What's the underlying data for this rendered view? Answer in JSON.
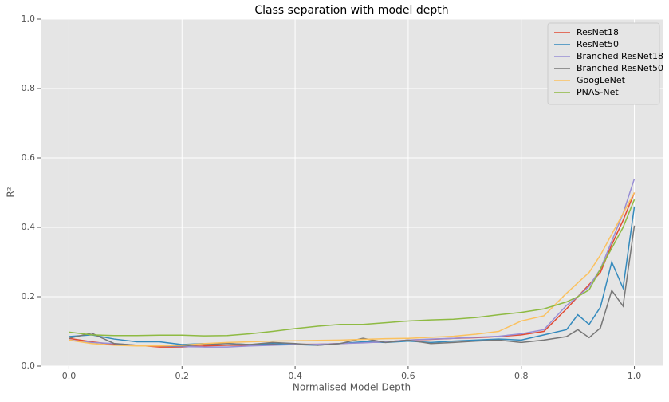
{
  "chart_data": {
    "type": "line",
    "title": "Class separation with model depth",
    "xlabel": "Normalised Model Depth",
    "ylabel": "R²",
    "x": [
      0,
      0.04,
      0.08,
      0.12,
      0.16,
      0.2,
      0.24,
      0.28,
      0.32,
      0.36,
      0.4,
      0.44,
      0.48,
      0.52,
      0.56,
      0.6,
      0.64,
      0.68,
      0.72,
      0.76,
      0.8,
      0.84,
      0.88,
      0.9,
      0.92,
      0.94,
      0.96,
      0.98,
      1.0
    ],
    "series": [
      {
        "name": "ResNet18",
        "color": "#E24A33",
        "values": [
          0.08,
          0.07,
          0.062,
          0.06,
          0.055,
          0.055,
          0.058,
          0.06,
          0.06,
          0.062,
          0.063,
          0.063,
          0.065,
          0.068,
          0.07,
          0.075,
          0.077,
          0.08,
          0.082,
          0.085,
          0.09,
          0.1,
          0.165,
          0.2,
          0.235,
          0.27,
          0.35,
          0.42,
          0.5
        ]
      },
      {
        "name": "ResNet50",
        "color": "#348ABD",
        "values": [
          0.085,
          0.09,
          0.078,
          0.07,
          0.07,
          0.062,
          0.065,
          0.065,
          0.062,
          0.065,
          0.062,
          0.06,
          0.065,
          0.07,
          0.068,
          0.072,
          0.068,
          0.072,
          0.075,
          0.078,
          0.075,
          0.09,
          0.105,
          0.148,
          0.12,
          0.17,
          0.3,
          0.225,
          0.46
        ]
      },
      {
        "name": "Branched ResNet18",
        "color": "#988ED5",
        "values": [
          0.075,
          0.068,
          0.065,
          0.06,
          0.058,
          0.056,
          0.055,
          0.055,
          0.058,
          0.06,
          0.062,
          0.063,
          0.065,
          0.067,
          0.07,
          0.075,
          0.078,
          0.08,
          0.083,
          0.086,
          0.093,
          0.105,
          0.175,
          0.2,
          0.23,
          0.28,
          0.36,
          0.44,
          0.54
        ]
      },
      {
        "name": "Branched ResNet50",
        "color": "#777777",
        "values": [
          0.08,
          0.095,
          0.065,
          0.06,
          0.058,
          0.058,
          0.062,
          0.065,
          0.062,
          0.068,
          0.065,
          0.06,
          0.065,
          0.08,
          0.068,
          0.075,
          0.065,
          0.068,
          0.072,
          0.075,
          0.068,
          0.075,
          0.085,
          0.105,
          0.082,
          0.11,
          0.218,
          0.173,
          0.405
        ]
      },
      {
        "name": "GoogLeNet",
        "color": "#FBC15E",
        "values": [
          0.075,
          0.065,
          0.06,
          0.058,
          0.058,
          0.06,
          0.065,
          0.068,
          0.07,
          0.072,
          0.073,
          0.074,
          0.075,
          0.077,
          0.079,
          0.08,
          0.083,
          0.086,
          0.092,
          0.1,
          0.13,
          0.145,
          0.21,
          0.24,
          0.27,
          0.32,
          0.38,
          0.44,
          0.5
        ]
      },
      {
        "name": "PNAS-Net",
        "color": "#8EBA42",
        "values": [
          0.098,
          0.09,
          0.088,
          0.088,
          0.089,
          0.089,
          0.087,
          0.088,
          0.093,
          0.1,
          0.108,
          0.115,
          0.12,
          0.12,
          0.125,
          0.13,
          0.133,
          0.135,
          0.14,
          0.148,
          0.155,
          0.165,
          0.185,
          0.2,
          0.22,
          0.28,
          0.34,
          0.4,
          0.48
        ]
      }
    ],
    "xlim": [
      -0.05,
      1.05
    ],
    "ylim": [
      0,
      1
    ],
    "xticks": [
      {
        "value": 0,
        "label": "0.0"
      },
      0.2,
      0.4,
      0.6,
      0.8,
      {
        "value": 1,
        "label": "1.0"
      }
    ],
    "yticks": [
      {
        "value": 0,
        "label": "0.0"
      },
      0.2,
      0.4,
      0.6,
      0.8,
      {
        "value": 1,
        "label": "1.0"
      }
    ],
    "grid": true,
    "legend": "upper right"
  }
}
